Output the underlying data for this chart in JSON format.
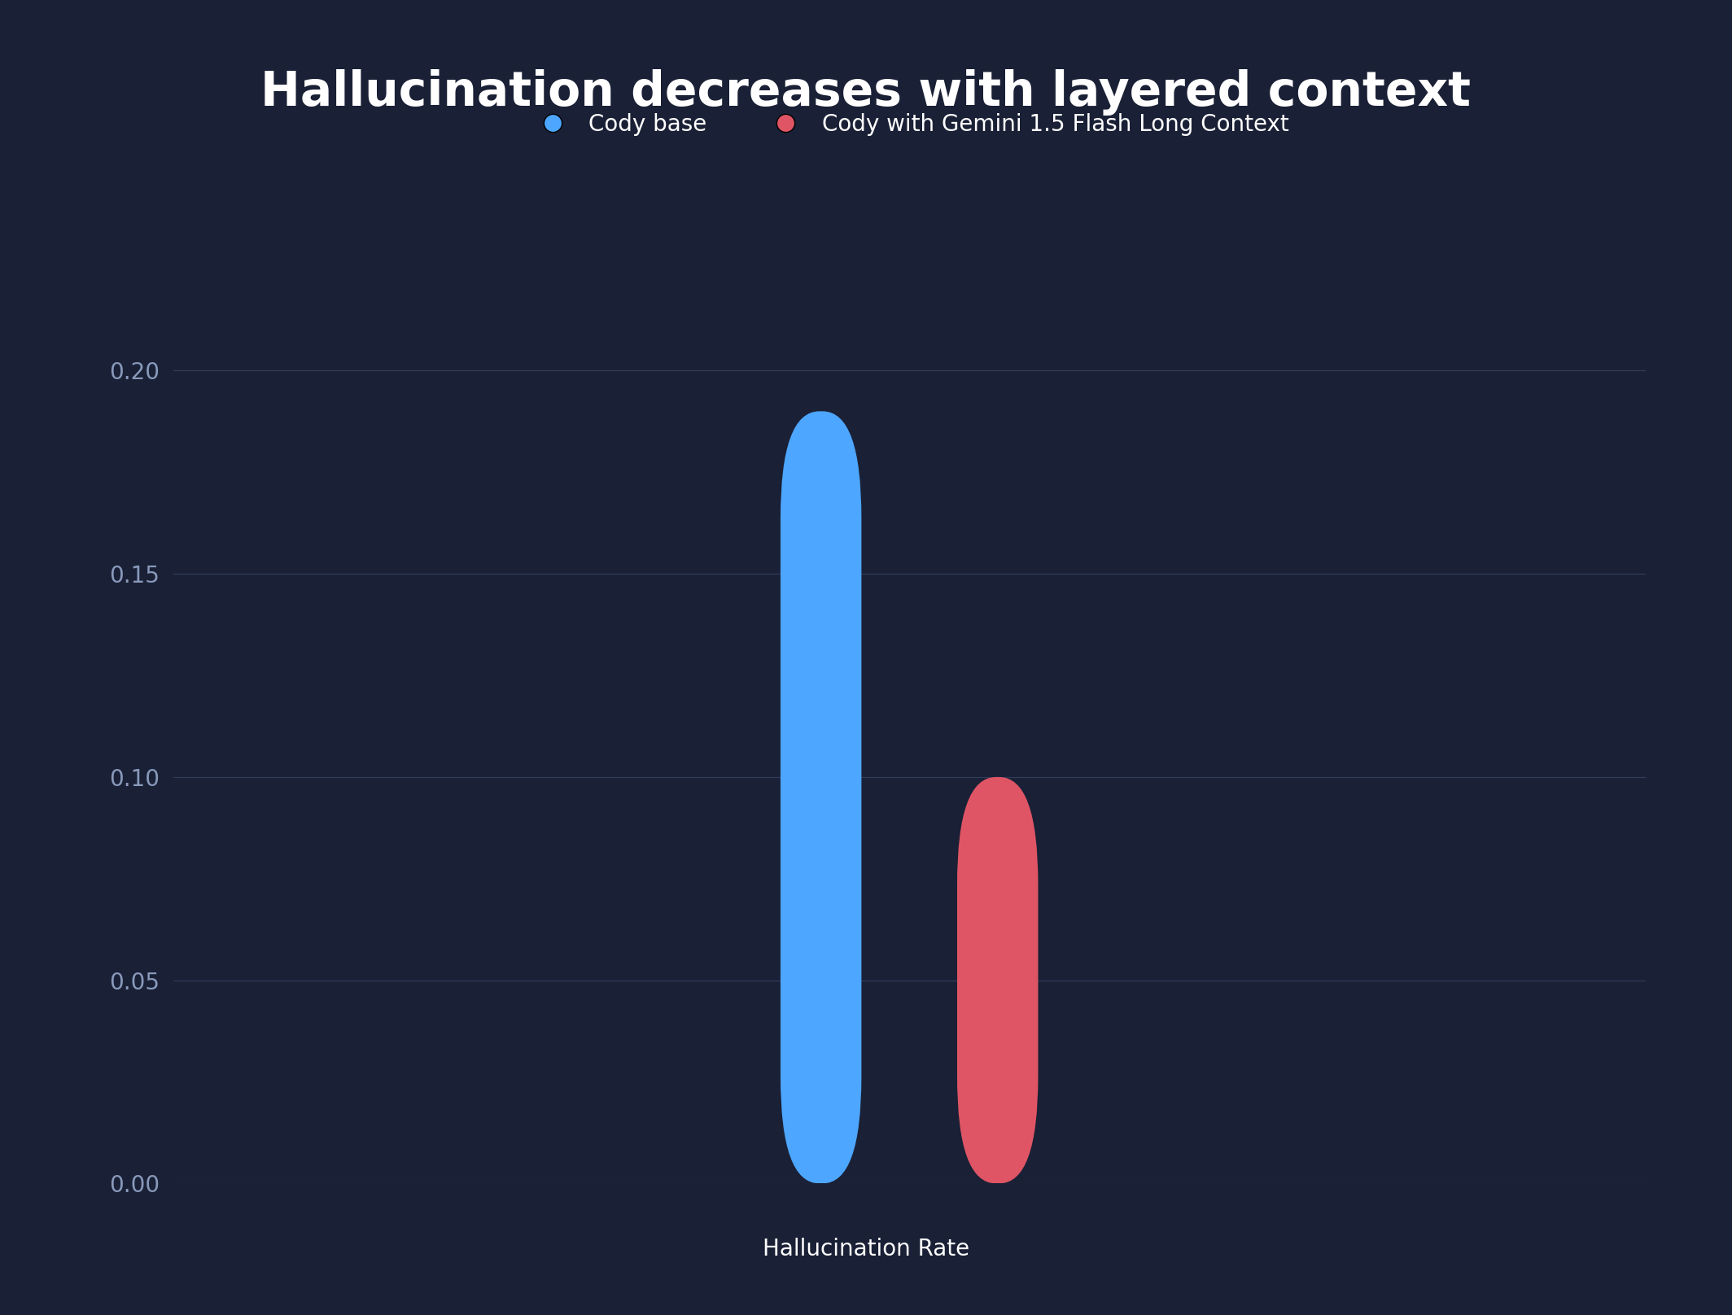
{
  "title": "Hallucination decreases with layered context",
  "xlabel": "Hallucination Rate",
  "legend_labels": [
    "Cody base",
    "Cody with Gemini 1.5 Flash Long Context"
  ],
  "bar_colors": [
    "#4da6ff",
    "#e05565"
  ],
  "values": [
    0.19,
    0.1
  ],
  "ylim": [
    0.0,
    0.22
  ],
  "yticks": [
    0.0,
    0.05,
    0.1,
    0.15,
    0.2
  ],
  "ytick_labels": [
    "0.00",
    "0.05",
    "0.10",
    "0.15",
    "0.20"
  ],
  "background_color": "#1a2035",
  "grid_color": "#3a4a6a",
  "text_color": "#ffffff",
  "tick_label_color": "#8899bb",
  "title_fontsize": 42,
  "xlabel_fontsize": 20,
  "legend_fontsize": 20,
  "tick_fontsize": 20,
  "bar_width": 0.055,
  "bar_positions": [
    0.44,
    0.56
  ],
  "xlim": [
    0.0,
    1.0
  ]
}
